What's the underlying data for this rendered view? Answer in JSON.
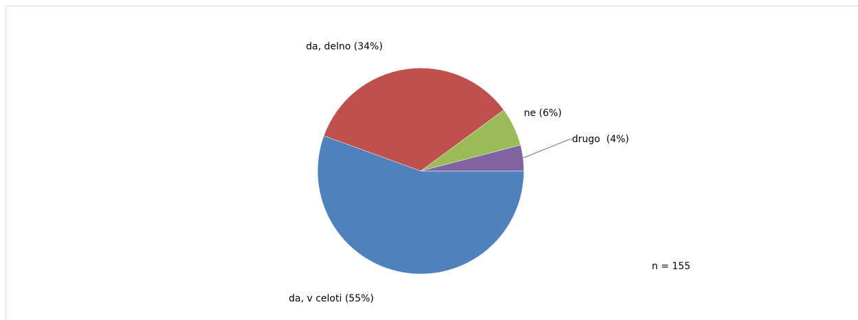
{
  "chart_data": {
    "type": "pie",
    "categories": [
      "da, v celoti (55%)",
      "da, delno (34%)",
      "ne (6%)",
      "drugo  (4%)"
    ],
    "values": [
      55,
      34,
      6,
      4
    ],
    "colors": [
      "#4f81bd",
      "#c0504d",
      "#9bbb59",
      "#8064a2"
    ],
    "annotation": "n = 155"
  }
}
